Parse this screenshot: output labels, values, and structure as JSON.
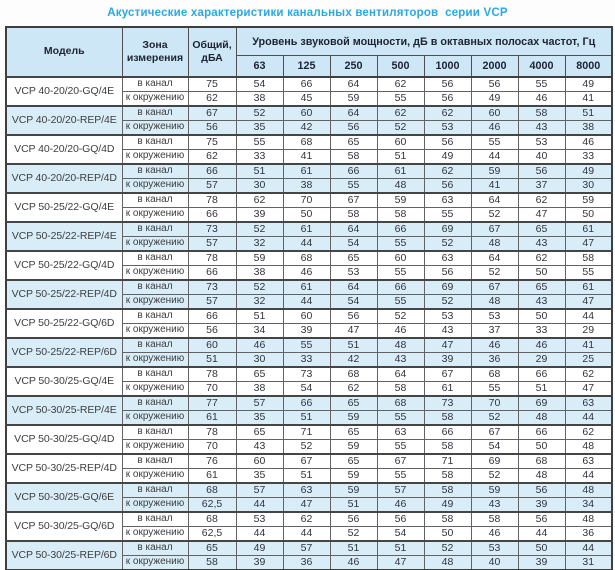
{
  "title": "Акустические характеристики канальных вентиляторов  серии VCP",
  "table": {
    "headers": {
      "model": "Модель",
      "zone": "Зона измерения",
      "total": "Общий, дБА",
      "spl": "Уровень звуковой мощности, дБ в октавных полосах частот, Гц",
      "frequencies": [
        "63",
        "125",
        "250",
        "500",
        "1000",
        "2000",
        "4000",
        "8000"
      ]
    },
    "zone_labels": [
      "в канал",
      "к окружению"
    ],
    "colors": {
      "title_text": "#29a9e1",
      "header_bg": "#cde7f7",
      "shaded_row_bg": "#d9edf9",
      "border_dark": "#3f3f3f"
    },
    "rows": [
      {
        "model": "VCP 40-20/20-GQ/4E",
        "shaded": false,
        "in_duct": {
          "total": "75",
          "bands": [
            "54",
            "66",
            "64",
            "62",
            "56",
            "56",
            "55",
            "49"
          ]
        },
        "to_env": {
          "total": "62",
          "bands": [
            "38",
            "45",
            "59",
            "55",
            "56",
            "49",
            "46",
            "41"
          ]
        }
      },
      {
        "model": "VCP 40-20/20-REP/4E",
        "shaded": true,
        "in_duct": {
          "total": "67",
          "bands": [
            "52",
            "60",
            "64",
            "62",
            "62",
            "60",
            "58",
            "51"
          ]
        },
        "to_env": {
          "total": "56",
          "bands": [
            "35",
            "42",
            "56",
            "52",
            "53",
            "46",
            "43",
            "38"
          ]
        }
      },
      {
        "model": "VCP 40-20/20-GQ/4D",
        "shaded": false,
        "in_duct": {
          "total": "75",
          "bands": [
            "55",
            "68",
            "65",
            "60",
            "56",
            "55",
            "53",
            "46"
          ]
        },
        "to_env": {
          "total": "62",
          "bands": [
            "33",
            "41",
            "58",
            "51",
            "49",
            "44",
            "40",
            "33"
          ]
        }
      },
      {
        "model": "VCP 40-20/20-REP/4D",
        "shaded": true,
        "in_duct": {
          "total": "66",
          "bands": [
            "51",
            "61",
            "66",
            "61",
            "62",
            "59",
            "56",
            "49"
          ]
        },
        "to_env": {
          "total": "57",
          "bands": [
            "30",
            "38",
            "55",
            "48",
            "56",
            "41",
            "37",
            "30"
          ]
        }
      },
      {
        "model": "VCP 50-25/22-GQ/4E",
        "shaded": false,
        "in_duct": {
          "total": "78",
          "bands": [
            "62",
            "70",
            "67",
            "59",
            "63",
            "64",
            "62",
            "59"
          ]
        },
        "to_env": {
          "total": "66",
          "bands": [
            "39",
            "50",
            "58",
            "58",
            "55",
            "52",
            "47",
            "50"
          ]
        }
      },
      {
        "model": "VCP 50-25/22-REP/4E",
        "shaded": true,
        "in_duct": {
          "total": "73",
          "bands": [
            "52",
            "61",
            "64",
            "66",
            "69",
            "67",
            "65",
            "61"
          ]
        },
        "to_env": {
          "total": "57",
          "bands": [
            "32",
            "44",
            "54",
            "55",
            "52",
            "48",
            "43",
            "47"
          ]
        }
      },
      {
        "model": "VCP 50-25/22-GQ/4D",
        "shaded": false,
        "in_duct": {
          "total": "78",
          "bands": [
            "59",
            "68",
            "65",
            "60",
            "63",
            "64",
            "62",
            "58"
          ]
        },
        "to_env": {
          "total": "66",
          "bands": [
            "38",
            "46",
            "53",
            "55",
            "56",
            "52",
            "50",
            "55"
          ]
        }
      },
      {
        "model": "VCP 50-25/22-REP/4D",
        "shaded": true,
        "in_duct": {
          "total": "73",
          "bands": [
            "52",
            "61",
            "64",
            "66",
            "69",
            "67",
            "65",
            "61"
          ]
        },
        "to_env": {
          "total": "57",
          "bands": [
            "32",
            "44",
            "54",
            "55",
            "52",
            "48",
            "43",
            "47"
          ]
        }
      },
      {
        "model": "VCP 50-25/22-GQ/6D",
        "shaded": false,
        "in_duct": {
          "total": "66",
          "bands": [
            "51",
            "60",
            "56",
            "52",
            "53",
            "53",
            "50",
            "44"
          ]
        },
        "to_env": {
          "total": "56",
          "bands": [
            "34",
            "39",
            "47",
            "46",
            "43",
            "37",
            "33",
            "29"
          ]
        }
      },
      {
        "model": "VCP 50-25/22-REP/6D",
        "shaded": true,
        "in_duct": {
          "total": "60",
          "bands": [
            "46",
            "55",
            "51",
            "48",
            "47",
            "46",
            "46",
            "41"
          ]
        },
        "to_env": {
          "total": "51",
          "bands": [
            "30",
            "33",
            "42",
            "43",
            "39",
            "36",
            "29",
            "25"
          ]
        }
      },
      {
        "model": "VCP 50-30/25-GQ/4E",
        "shaded": false,
        "in_duct": {
          "total": "78",
          "bands": [
            "65",
            "73",
            "68",
            "64",
            "67",
            "68",
            "66",
            "62"
          ]
        },
        "to_env": {
          "total": "70",
          "bands": [
            "38",
            "54",
            "62",
            "58",
            "61",
            "55",
            "51",
            "47"
          ]
        }
      },
      {
        "model": "VCP 50-30/25-REP/4E",
        "shaded": true,
        "in_duct": {
          "total": "77",
          "bands": [
            "57",
            "66",
            "65",
            "68",
            "73",
            "70",
            "69",
            "63"
          ]
        },
        "to_env": {
          "total": "61",
          "bands": [
            "35",
            "51",
            "59",
            "55",
            "58",
            "52",
            "48",
            "44"
          ]
        }
      },
      {
        "model": "VCP 50-30/25-GQ/4D",
        "shaded": false,
        "in_duct": {
          "total": "78",
          "bands": [
            "65",
            "71",
            "65",
            "63",
            "66",
            "67",
            "66",
            "62"
          ]
        },
        "to_env": {
          "total": "70",
          "bands": [
            "43",
            "52",
            "59",
            "55",
            "58",
            "54",
            "50",
            "48"
          ]
        }
      },
      {
        "model": "VCP 50-30/25-REP/4D",
        "shaded": false,
        "in_duct": {
          "total": "76",
          "bands": [
            "60",
            "67",
            "65",
            "67",
            "71",
            "69",
            "68",
            "63"
          ]
        },
        "to_env": {
          "total": "61",
          "bands": [
            "35",
            "51",
            "59",
            "55",
            "58",
            "52",
            "48",
            "44"
          ]
        }
      },
      {
        "model": "VCP 50-30/25-GQ/6E",
        "shaded": true,
        "in_duct": {
          "total": "68",
          "bands": [
            "57",
            "63",
            "59",
            "57",
            "58",
            "59",
            "56",
            "48"
          ]
        },
        "to_env": {
          "total": "62,5",
          "bands": [
            "44",
            "47",
            "51",
            "46",
            "49",
            "43",
            "39",
            "34"
          ]
        }
      },
      {
        "model": "VCP 50-30/25-GQ/6D",
        "shaded": false,
        "in_duct": {
          "total": "68",
          "bands": [
            "53",
            "62",
            "56",
            "56",
            "58",
            "58",
            "56",
            "48"
          ]
        },
        "to_env": {
          "total": "62,5",
          "bands": [
            "44",
            "44",
            "52",
            "54",
            "50",
            "46",
            "44",
            "36"
          ]
        }
      },
      {
        "model": "VCP 50-30/25-REP/6D",
        "shaded": true,
        "in_duct": {
          "total": "65",
          "bands": [
            "49",
            "57",
            "51",
            "51",
            "52",
            "53",
            "50",
            "44"
          ]
        },
        "to_env": {
          "total": "58",
          "bands": [
            "39",
            "36",
            "46",
            "47",
            "48",
            "40",
            "39",
            "31"
          ]
        }
      }
    ]
  }
}
